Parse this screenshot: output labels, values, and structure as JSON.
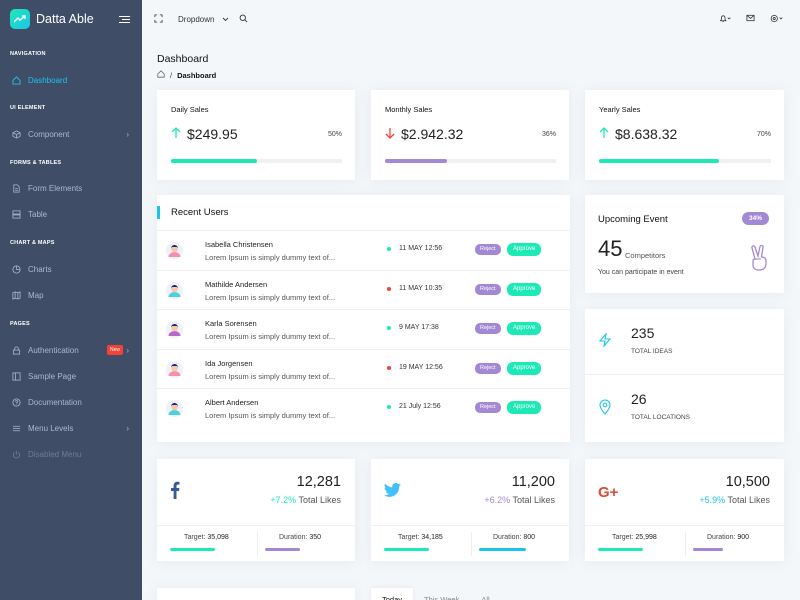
{
  "brand": {
    "name": "Datta Able"
  },
  "nav": {
    "captions": [
      "NAVIGATION",
      "UI ELEMENT",
      "FORMS & TABLES",
      "CHART & MAPS",
      "PAGES"
    ],
    "items": [
      {
        "label": "Dashboard",
        "icon": "home-icon"
      },
      {
        "label": "Component",
        "icon": "box-icon"
      },
      {
        "label": "Form Elements",
        "icon": "file-text-icon"
      },
      {
        "label": "Table",
        "icon": "server-icon"
      },
      {
        "label": "Charts",
        "icon": "pie-chart-icon"
      },
      {
        "label": "Map",
        "icon": "map-icon"
      },
      {
        "label": "Authentication",
        "icon": "lock-icon",
        "badge": "New"
      },
      {
        "label": "Sample Page",
        "icon": "sidebar-icon"
      },
      {
        "label": "Documentation",
        "icon": "help-circle-icon"
      },
      {
        "label": "Menu Levels",
        "icon": "menu-icon"
      },
      {
        "label": "Disabled Menu",
        "icon": "power-icon"
      }
    ]
  },
  "header": {
    "dropdown": "Dropdown"
  },
  "page": {
    "title": "Dashboard",
    "breadcrumb": "Dashboard"
  },
  "sales": [
    {
      "title": "Daily Sales",
      "value": "$249.95",
      "percent": "50%",
      "progress": 0.5,
      "direction": "up",
      "color": "#1de9b6"
    },
    {
      "title": "Monthly Sales",
      "value": "$2.942.32",
      "percent": "36%",
      "progress": 0.36,
      "direction": "down",
      "color": "#a389d4"
    },
    {
      "title": "Yearly Sales",
      "value": "$8.638.32",
      "percent": "70%",
      "progress": 0.7,
      "direction": "up",
      "color": "#1de9b6"
    }
  ],
  "recent_users": {
    "title": "Recent Users",
    "reject_label": "Reject",
    "approve_label": "Approve",
    "rows": [
      {
        "name": "Isabella Christensen",
        "desc": "Lorem Ipsum is simply dummy text of...",
        "date": "11 MAY 12:56",
        "dot": "#1de9b6"
      },
      {
        "name": "Mathilde Andersen",
        "desc": "Lorem Ipsum is simply dummy text of...",
        "date": "11 MAY 10:35",
        "dot": "#f44236"
      },
      {
        "name": "Karla Sorensen",
        "desc": "Lorem Ipsum is simply dummy text of...",
        "date": "9 MAY 17:38",
        "dot": "#1de9b6"
      },
      {
        "name": "Ida Jorgensen",
        "desc": "Lorem Ipsum is simply dummy text of...",
        "date": "19 MAY 12:56",
        "dot": "#f44236"
      },
      {
        "name": "Albert Andersen",
        "desc": "Lorem Ipsum is simply dummy text of...",
        "date": "21 July 12:56",
        "dot": "#1de9b6"
      }
    ]
  },
  "event": {
    "title": "Upcoming Event",
    "badge": "34%",
    "number": "45",
    "unit": "Competitors",
    "sub": "You can participate in event"
  },
  "stats": [
    {
      "value": "235",
      "label": "TOTAL IDEAS",
      "icon": "zap-icon"
    },
    {
      "value": "26",
      "label": "TOTAL LOCATIONS",
      "icon": "map-pin-icon"
    }
  ],
  "social": [
    {
      "network": "facebook",
      "glyph": "f",
      "color": "#3b5998",
      "value": "12,281",
      "change": "+7.2%",
      "change_color": "#1de9b6",
      "likes": "Total Likes",
      "target_label": "Target:",
      "target": "35,098",
      "duration_label": "Duration:",
      "duration": "350",
      "target_progress": 0.6,
      "duration_progress": 0.45,
      "bar1": "#1de9b6",
      "bar2": "#a389d4"
    },
    {
      "network": "twitter",
      "glyph": "t",
      "color": "#42c0fb",
      "value": "11,200",
      "change": "+6.2%",
      "change_color": "#a389d4",
      "likes": "Total Likes",
      "target_label": "Target:",
      "target": "34,185",
      "duration_label": "Duration:",
      "duration": "800",
      "target_progress": 0.6,
      "duration_progress": 0.6,
      "bar1": "#1de9b6",
      "bar2": "#1dc4e9"
    },
    {
      "network": "google-plus",
      "glyph": "G+",
      "color": "#dd4b39",
      "value": "10,500",
      "change": "+5.9%",
      "change_color": "#1dc4e9",
      "likes": "Total Likes",
      "target_label": "Target:",
      "target": "25,998",
      "duration_label": "Duration:",
      "duration": "900",
      "target_progress": 0.6,
      "duration_progress": 0.38,
      "bar1": "#1de9b6",
      "bar2": "#a389d4"
    }
  ],
  "tabs": [
    "Today",
    "This Week",
    "All"
  ]
}
